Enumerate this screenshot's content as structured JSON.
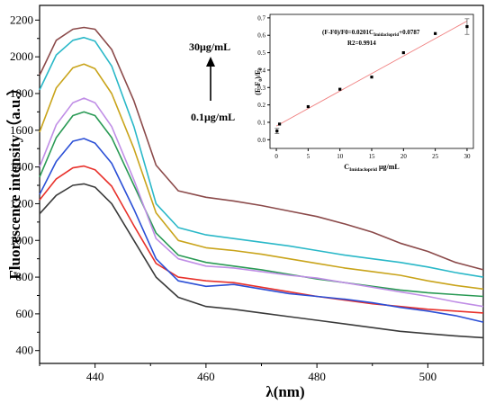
{
  "chart_data": [
    {
      "type": "line",
      "xlabel": "λ(nm)",
      "ylabel": "Fluorescence intensity（a.u.）",
      "xlim": [
        430,
        510
      ],
      "ylim": [
        330,
        2280
      ],
      "x_ticks": [
        "440",
        "460",
        "480",
        "500"
      ],
      "y_ticks": [
        "400",
        "600",
        "800",
        "1000",
        "1200",
        "1400",
        "1600",
        "1800",
        "2000",
        "2200"
      ],
      "annotation_top": "30μg/mL",
      "annotation_bottom": "0.1μg/mL",
      "series": [
        {
          "color": "#3a3a3a",
          "points": [
            [
              430,
              1145
            ],
            [
              433,
              1245
            ],
            [
              436,
              1300
            ],
            [
              438,
              1308
            ],
            [
              440,
              1290
            ],
            [
              443,
              1200
            ],
            [
              447,
              1000
            ],
            [
              451,
              800
            ],
            [
              455,
              690
            ],
            [
              460,
              640
            ],
            [
              465,
              625
            ],
            [
              470,
              605
            ],
            [
              475,
              585
            ],
            [
              480,
              565
            ],
            [
              485,
              545
            ],
            [
              490,
              525
            ],
            [
              495,
              505
            ],
            [
              500,
              492
            ],
            [
              505,
              480
            ],
            [
              510,
              470
            ]
          ]
        },
        {
          "color": "#e8312b",
          "points": [
            [
              430,
              1220
            ],
            [
              433,
              1335
            ],
            [
              436,
              1395
            ],
            [
              438,
              1405
            ],
            [
              440,
              1385
            ],
            [
              443,
              1295
            ],
            [
              447,
              1080
            ],
            [
              451,
              875
            ],
            [
              455,
              800
            ],
            [
              460,
              780
            ],
            [
              465,
              770
            ],
            [
              470,
              745
            ],
            [
              475,
              720
            ],
            [
              480,
              695
            ],
            [
              485,
              675
            ],
            [
              490,
              655
            ],
            [
              495,
              640
            ],
            [
              500,
              625
            ],
            [
              505,
              615
            ],
            [
              510,
              605
            ]
          ]
        },
        {
          "color": "#2b4fd6",
          "points": [
            [
              430,
              1250
            ],
            [
              433,
              1430
            ],
            [
              436,
              1540
            ],
            [
              438,
              1555
            ],
            [
              440,
              1530
            ],
            [
              443,
              1420
            ],
            [
              447,
              1170
            ],
            [
              451,
              900
            ],
            [
              455,
              780
            ],
            [
              460,
              750
            ],
            [
              465,
              760
            ],
            [
              470,
              735
            ],
            [
              475,
              710
            ],
            [
              480,
              695
            ],
            [
              485,
              680
            ],
            [
              490,
              660
            ],
            [
              495,
              635
            ],
            [
              500,
              615
            ],
            [
              505,
              590
            ],
            [
              510,
              555
            ]
          ]
        },
        {
          "color": "#2a9a55",
          "points": [
            [
              430,
              1345
            ],
            [
              433,
              1560
            ],
            [
              436,
              1680
            ],
            [
              438,
              1700
            ],
            [
              440,
              1680
            ],
            [
              443,
              1560
            ],
            [
              447,
              1300
            ],
            [
              451,
              1040
            ],
            [
              455,
              920
            ],
            [
              460,
              880
            ],
            [
              465,
              860
            ],
            [
              470,
              840
            ],
            [
              475,
              815
            ],
            [
              480,
              790
            ],
            [
              485,
              770
            ],
            [
              490,
              750
            ],
            [
              495,
              730
            ],
            [
              500,
              715
            ],
            [
              505,
              705
            ],
            [
              510,
              695
            ]
          ]
        },
        {
          "color": "#c08ee6",
          "points": [
            [
              430,
              1400
            ],
            [
              433,
              1630
            ],
            [
              436,
              1750
            ],
            [
              438,
              1775
            ],
            [
              440,
              1750
            ],
            [
              443,
              1620
            ],
            [
              447,
              1330
            ],
            [
              451,
              1010
            ],
            [
              455,
              900
            ],
            [
              460,
              860
            ],
            [
              465,
              850
            ],
            [
              470,
              830
            ],
            [
              475,
              810
            ],
            [
              480,
              795
            ],
            [
              485,
              770
            ],
            [
              490,
              745
            ],
            [
              495,
              720
            ],
            [
              500,
              695
            ],
            [
              505,
              665
            ],
            [
              510,
              640
            ]
          ]
        },
        {
          "color": "#c9a41b",
          "points": [
            [
              430,
              1590
            ],
            [
              433,
              1830
            ],
            [
              436,
              1940
            ],
            [
              438,
              1960
            ],
            [
              440,
              1935
            ],
            [
              443,
              1800
            ],
            [
              447,
              1500
            ],
            [
              451,
              1150
            ],
            [
              455,
              1000
            ],
            [
              460,
              960
            ],
            [
              465,
              945
            ],
            [
              470,
              925
            ],
            [
              475,
              900
            ],
            [
              480,
              875
            ],
            [
              485,
              850
            ],
            [
              490,
              830
            ],
            [
              495,
              810
            ],
            [
              500,
              780
            ],
            [
              505,
              755
            ],
            [
              510,
              735
            ]
          ]
        },
        {
          "color": "#2ab8c8",
          "points": [
            [
              430,
              1820
            ],
            [
              433,
              2010
            ],
            [
              436,
              2090
            ],
            [
              438,
              2105
            ],
            [
              440,
              2085
            ],
            [
              443,
              1950
            ],
            [
              447,
              1620
            ],
            [
              451,
              1200
            ],
            [
              455,
              1070
            ],
            [
              460,
              1030
            ],
            [
              465,
              1010
            ],
            [
              470,
              990
            ],
            [
              475,
              970
            ],
            [
              480,
              945
            ],
            [
              485,
              920
            ],
            [
              490,
              900
            ],
            [
              495,
              880
            ],
            [
              500,
              855
            ],
            [
              505,
              825
            ],
            [
              510,
              800
            ]
          ]
        },
        {
          "color": "#8b4a4a",
          "points": [
            [
              430,
              1900
            ],
            [
              433,
              2090
            ],
            [
              436,
              2150
            ],
            [
              438,
              2160
            ],
            [
              440,
              2150
            ],
            [
              443,
              2040
            ],
            [
              447,
              1760
            ],
            [
              451,
              1410
            ],
            [
              455,
              1270
            ],
            [
              460,
              1235
            ],
            [
              465,
              1215
            ],
            [
              470,
              1190
            ],
            [
              475,
              1160
            ],
            [
              480,
              1130
            ],
            [
              485,
              1090
            ],
            [
              490,
              1045
            ],
            [
              495,
              985
            ],
            [
              500,
              940
            ],
            [
              505,
              880
            ],
            [
              510,
              840
            ]
          ]
        }
      ]
    },
    {
      "type": "scatter",
      "xlabel": "C",
      "xlabel_sub": "Imidacloprid",
      "xlabel_unit": " μg/mL",
      "ylabel": "(F-F",
      "ylabel_sub": "0",
      "ylabel_tail": ")/F",
      "ylabel_sub2": "0",
      "equation_main": "(F-F0)/F0=0.0201C",
      "equation_sub": "Imidacloprid",
      "equation_tail": "+0.0787",
      "r2": "R2=0.9914",
      "xlim": [
        -1,
        31
      ],
      "ylim": [
        -0.05,
        0.72
      ],
      "x_ticks": [
        "0",
        "5",
        "10",
        "15",
        "20",
        "25",
        "30"
      ],
      "y_ticks": [
        "0.0",
        "0.1",
        "0.2",
        "0.3",
        "0.4",
        "0.5",
        "0.6",
        "0.7"
      ],
      "x": [
        0.1,
        0.5,
        5,
        10,
        15,
        20,
        25,
        30
      ],
      "y": [
        0.05,
        0.09,
        0.19,
        0.29,
        0.36,
        0.5,
        0.61,
        0.65
      ],
      "error": [
        0.015,
        0,
        0,
        0,
        0,
        0,
        0,
        0.045
      ],
      "fit": {
        "slope": 0.0201,
        "intercept": 0.0787
      },
      "fit_color": "#f08080"
    }
  ]
}
